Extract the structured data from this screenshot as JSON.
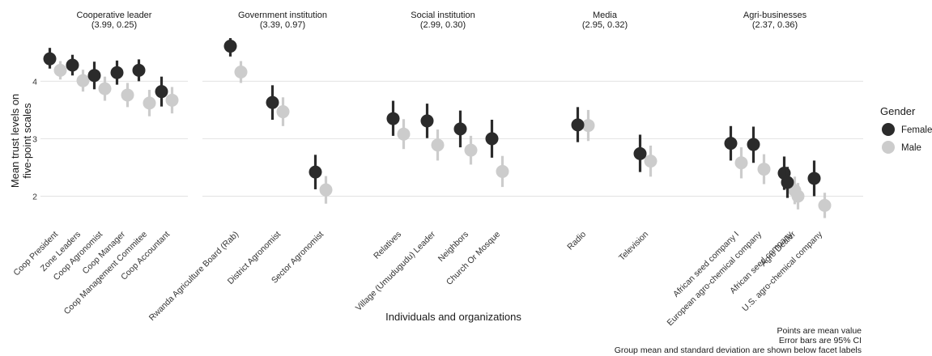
{
  "chart_data": {
    "type": "scatter",
    "title": "",
    "xlabel": "Individuals and organizations",
    "ylabel": "Mean trust levels on five-point scales",
    "ylim": [
      1.5,
      4.85
    ],
    "y_ticks": [
      2,
      3,
      4
    ],
    "grid": true,
    "legend": {
      "title": "Gender",
      "position": "right",
      "entries": [
        {
          "name": "Female",
          "color": "#2b2b2b"
        },
        {
          "name": "Male",
          "color": "#cccccc"
        }
      ]
    },
    "captions": [
      "Points are mean value",
      "Error bars are 95% CI",
      "Group mean and standard deviation are shown below facet labels"
    ],
    "facets": [
      {
        "title": "Cooperative leader",
        "stats": "(3.99, 0.25)",
        "categories": [
          {
            "label": "Coop President",
            "female": {
              "mean": 4.39,
              "ci": [
                4.22,
                4.58
              ]
            },
            "male": {
              "mean": 4.19,
              "ci": [
                4.03,
                4.35
              ]
            }
          },
          {
            "label": "Zone Leaders",
            "female": {
              "mean": 4.28,
              "ci": [
                4.1,
                4.46
              ]
            },
            "male": {
              "mean": 4.01,
              "ci": [
                3.82,
                4.2
              ]
            }
          },
          {
            "label": "Coop Agronomist",
            "female": {
              "mean": 4.1,
              "ci": [
                3.86,
                4.34
              ]
            },
            "male": {
              "mean": 3.87,
              "ci": [
                3.66,
                4.08
              ]
            }
          },
          {
            "label": "Coop Manager",
            "female": {
              "mean": 4.15,
              "ci": [
                3.94,
                4.36
              ]
            },
            "male": {
              "mean": 3.76,
              "ci": [
                3.55,
                3.97
              ]
            }
          },
          {
            "label": "Coop Management Commitee",
            "female": {
              "mean": 4.19,
              "ci": [
                4.0,
                4.38
              ]
            },
            "male": {
              "mean": 3.62,
              "ci": [
                3.39,
                3.85
              ]
            }
          },
          {
            "label": "Coop Accountant",
            "female": {
              "mean": 3.82,
              "ci": [
                3.56,
                4.08
              ]
            },
            "male": {
              "mean": 3.67,
              "ci": [
                3.44,
                3.9
              ]
            }
          }
        ]
      },
      {
        "title": "Government institution",
        "stats": "(3.39, 0.97)",
        "categories": [
          {
            "label": "Rwanda Agriculture Board (Rab)",
            "female": {
              "mean": 4.61,
              "ci": [
                4.43,
                4.75
              ]
            },
            "male": {
              "mean": 4.16,
              "ci": [
                3.97,
                4.35
              ]
            }
          },
          {
            "label": "District Agronomist",
            "female": {
              "mean": 3.63,
              "ci": [
                3.33,
                3.93
              ]
            },
            "male": {
              "mean": 3.47,
              "ci": [
                3.22,
                3.72
              ]
            }
          },
          {
            "label": "Sector Agronomist",
            "female": {
              "mean": 2.42,
              "ci": [
                2.12,
                2.72
              ]
            },
            "male": {
              "mean": 2.11,
              "ci": [
                1.87,
                2.35
              ]
            }
          }
        ]
      },
      {
        "title": "Social institution",
        "stats": "(2.99, 0.30)",
        "categories": [
          {
            "label": "Relatives",
            "female": {
              "mean": 3.35,
              "ci": [
                3.05,
                3.66
              ]
            },
            "male": {
              "mean": 3.08,
              "ci": [
                2.82,
                3.34
              ]
            }
          },
          {
            "label": "Village (Umudugudu) Leader",
            "female": {
              "mean": 3.31,
              "ci": [
                3.01,
                3.61
              ]
            },
            "male": {
              "mean": 2.89,
              "ci": [
                2.62,
                3.16
              ]
            }
          },
          {
            "label": "Neighbors",
            "female": {
              "mean": 3.17,
              "ci": [
                2.85,
                3.49
              ]
            },
            "male": {
              "mean": 2.8,
              "ci": [
                2.55,
                3.05
              ]
            }
          },
          {
            "label": "Church Or Mosque",
            "female": {
              "mean": 3.0,
              "ci": [
                2.67,
                3.33
              ]
            },
            "male": {
              "mean": 2.43,
              "ci": [
                2.16,
                2.7
              ]
            }
          }
        ]
      },
      {
        "title": "Media",
        "stats": "(2.95, 0.32)",
        "categories": [
          {
            "label": "Radio",
            "female": {
              "mean": 3.24,
              "ci": [
                2.94,
                3.55
              ]
            },
            "male": {
              "mean": 3.23,
              "ci": [
                2.96,
                3.5
              ]
            }
          },
          {
            "label": "Television",
            "female": {
              "mean": 2.74,
              "ci": [
                2.42,
                3.07
              ]
            },
            "male": {
              "mean": 2.61,
              "ci": [
                2.34,
                2.88
              ]
            }
          }
        ]
      },
      {
        "title": "Agri-businesses",
        "stats": "(2.37, 0.36)",
        "categories": [
          {
            "label": "African seed company I",
            "female": {
              "mean": 2.92,
              "ci": [
                2.62,
                3.22
              ]
            },
            "male": {
              "mean": 2.58,
              "ci": [
                2.31,
                2.85
              ]
            }
          },
          {
            "label": "European agro-chemical company",
            "female": {
              "mean": 2.9,
              "ci": [
                2.58,
                3.21
              ]
            },
            "male": {
              "mean": 2.47,
              "ci": [
                2.21,
                2.73
              ]
            }
          },
          {
            "label": "African seed company",
            "female": {
              "mean": 2.4,
              "ci": [
                2.11,
                2.69
              ]
            },
            "male": {
              "mean": 2.1,
              "ci": [
                1.86,
                2.34
              ]
            }
          },
          {
            "label": "Agro Dealer",
            "female": {
              "mean": 2.24,
              "ci": [
                1.97,
                2.51
              ]
            },
            "male": {
              "mean": 2.0,
              "ci": [
                1.77,
                2.23
              ]
            }
          },
          {
            "label": "U.S. agro-chemical company",
            "female": {
              "mean": 2.31,
              "ci": [
                2.0,
                2.62
              ]
            },
            "male": {
              "mean": 1.84,
              "ci": [
                1.62,
                2.06
              ]
            }
          }
        ]
      }
    ]
  }
}
